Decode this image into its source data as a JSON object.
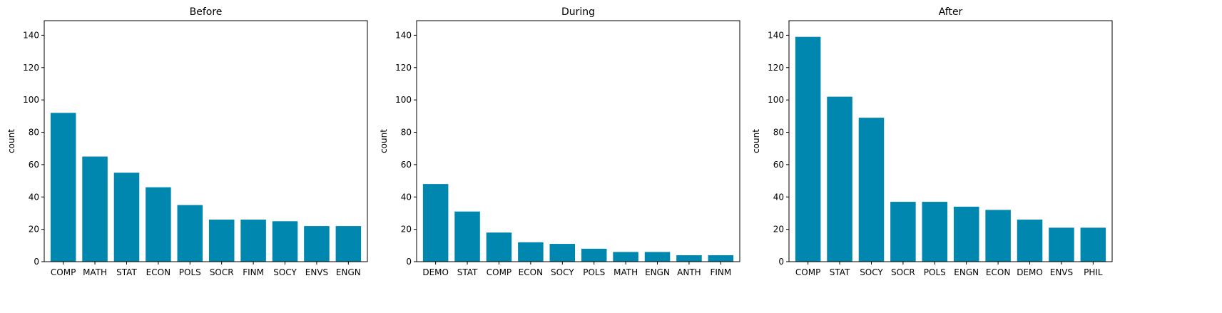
{
  "style": {
    "bar_color": "#0087b0",
    "axis_color": "#000000",
    "background": "#ffffff"
  },
  "chart_data": [
    {
      "type": "bar",
      "title": "Before",
      "xlabel": "",
      "ylabel": "count",
      "ylim": [
        0,
        149
      ],
      "yticks": [
        0,
        20,
        40,
        60,
        80,
        100,
        120,
        140
      ],
      "grid": false,
      "categories": [
        "COMP",
        "MATH",
        "STAT",
        "ECON",
        "POLS",
        "SOCR",
        "FINM",
        "SOCY",
        "ENVS",
        "ENGN"
      ],
      "values": [
        92,
        65,
        55,
        46,
        35,
        26,
        26,
        25,
        22,
        22
      ]
    },
    {
      "type": "bar",
      "title": "During",
      "xlabel": "",
      "ylabel": "count",
      "ylim": [
        0,
        149
      ],
      "yticks": [
        0,
        20,
        40,
        60,
        80,
        100,
        120,
        140
      ],
      "grid": false,
      "categories": [
        "DEMO",
        "STAT",
        "COMP",
        "ECON",
        "SOCY",
        "POLS",
        "MATH",
        "ENGN",
        "ANTH",
        "FINM"
      ],
      "values": [
        48,
        31,
        18,
        12,
        11,
        8,
        6,
        6,
        4,
        4
      ]
    },
    {
      "type": "bar",
      "title": "After",
      "xlabel": "",
      "ylabel": "count",
      "ylim": [
        0,
        149
      ],
      "yticks": [
        0,
        20,
        40,
        60,
        80,
        100,
        120,
        140
      ],
      "grid": false,
      "categories": [
        "COMP",
        "STAT",
        "SOCY",
        "SOCR",
        "POLS",
        "ENGN",
        "ECON",
        "DEMO",
        "ENVS",
        "PHIL"
      ],
      "values": [
        139,
        102,
        89,
        37,
        37,
        34,
        32,
        26,
        21,
        21
      ]
    }
  ]
}
